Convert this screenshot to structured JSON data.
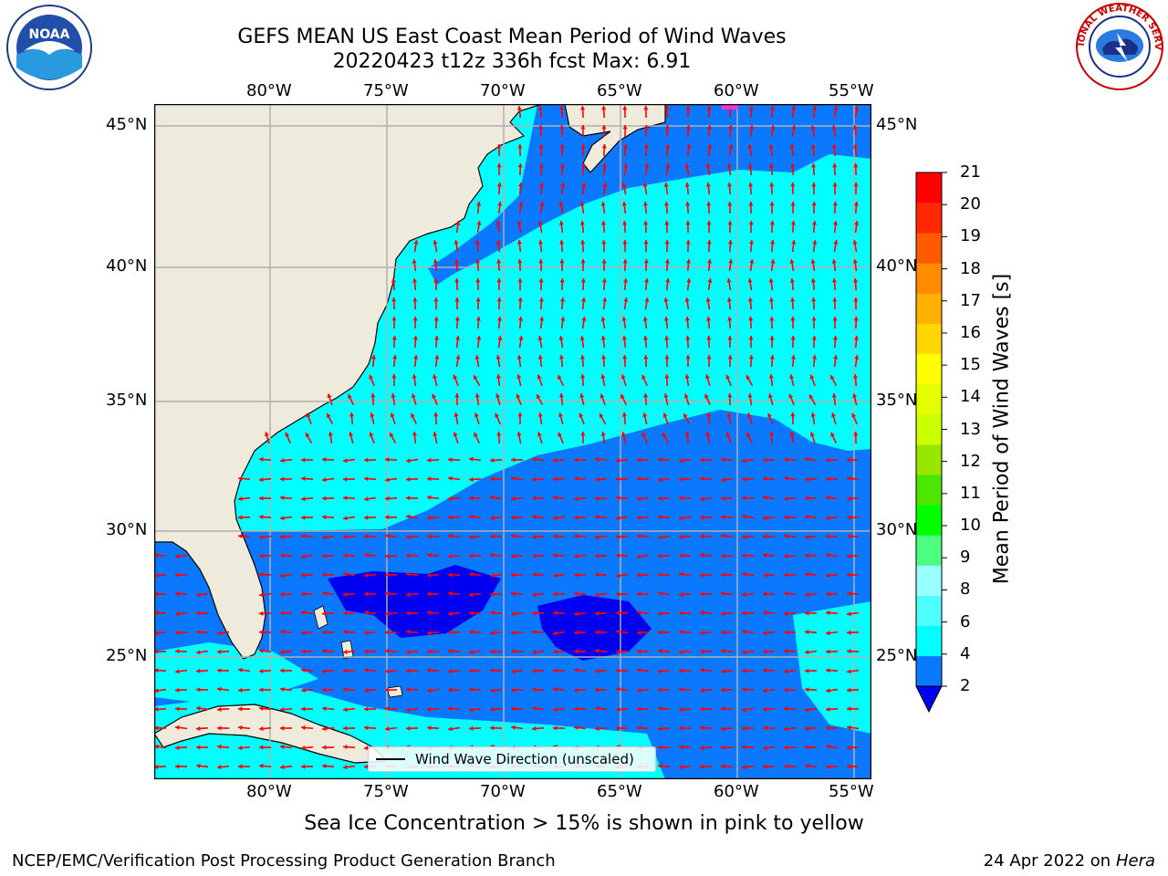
{
  "header": {
    "title_line1": "GEFS MEAN US East Coast Mean Period of Wind Waves",
    "title_line2": "20220423 t12z 336h fcst   Max: 6.91"
  },
  "logos": {
    "left_icon": "noaa-logo",
    "left_text": "NOAA",
    "right_icon": "nws-logo",
    "right_text": "NATIONAL WEATHER SERVICE"
  },
  "map": {
    "lon_labels": [
      "80°W",
      "75°W",
      "70°W",
      "65°W",
      "60°W",
      "55°W"
    ],
    "lat_labels": [
      "45°N",
      "40°N",
      "35°N",
      "30°N",
      "25°N"
    ],
    "legend_label": "Wind Wave Direction (unscaled)",
    "colors": {
      "land": "#efebdc",
      "ocean_dark": "#0000f0",
      "ocean_mid": "#0a78ff",
      "ocean_light": "#00ffff",
      "arrow": "#ff0000",
      "grid": "#b0b0b0",
      "ice": "#ff33cc"
    }
  },
  "colorbar": {
    "label": "Mean Period of Wind Waves [s]",
    "ticks": [
      "2",
      "4",
      "6",
      "8",
      "9",
      "10",
      "11",
      "12",
      "13",
      "14",
      "15",
      "16",
      "17",
      "18",
      "19",
      "20",
      "21"
    ],
    "colors": [
      "#0a78ff",
      "#00ffff",
      "#4dffff",
      "#99ffff",
      "#4dff80",
      "#00ff00",
      "#4ce600",
      "#99e600",
      "#ccff00",
      "#e6ff00",
      "#ffff00",
      "#ffd700",
      "#ffb000",
      "#ff8c00",
      "#ff5a00",
      "#ff2800",
      "#ff0000"
    ],
    "under_color": "#0000f0"
  },
  "footer": {
    "ice_note": "Sea Ice Concentration > 15% is shown in pink to yellow",
    "credit": "NCEP/EMC/Verification Post Processing Product Generation Branch",
    "date": "24 Apr 2022 on ",
    "machine": "Hera"
  }
}
